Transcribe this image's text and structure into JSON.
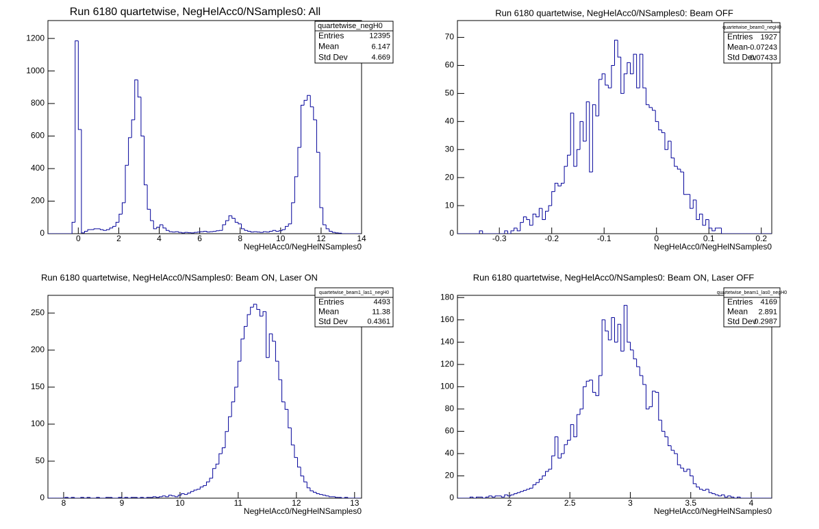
{
  "chart_data": [
    {
      "type": "histogram",
      "title": "Run 6180 quartetwise, NegHelAcc0/NSamples0: All",
      "xlabel": "NegHelAcc0/NegHelNSamples0",
      "color": "#000099",
      "xlim": [
        -1.5,
        14
      ],
      "ylim": [
        0,
        1310
      ],
      "xticks": [
        0,
        2,
        4,
        6,
        8,
        10,
        12,
        14
      ],
      "yticks": [
        0,
        200,
        400,
        600,
        800,
        1000,
        1200
      ],
      "bins": [
        -1.55,
        -1.395,
        -1.24,
        -1.085,
        -0.93,
        -0.775,
        -0.62,
        -0.465,
        -0.31,
        -0.155,
        0,
        0.155,
        0.31,
        0.465,
        0.62,
        0.775,
        0.93,
        1.085,
        1.24,
        1.395,
        1.55,
        1.705,
        1.86,
        2.015,
        2.17,
        2.325,
        2.48,
        2.635,
        2.79,
        2.945,
        3.1,
        3.255,
        3.41,
        3.565,
        3.72,
        3.875,
        4.03,
        4.185,
        4.34,
        4.495,
        4.65,
        4.805,
        4.96,
        5.115,
        5.27,
        5.425,
        5.58,
        5.735,
        5.89,
        6.045,
        6.2,
        6.355,
        6.51,
        6.665,
        6.82,
        6.975,
        7.13,
        7.285,
        7.44,
        7.595,
        7.75,
        7.905,
        8.06,
        8.215,
        8.37,
        8.525,
        8.68,
        8.835,
        8.99,
        9.145,
        9.3,
        9.455,
        9.61,
        9.765,
        9.92,
        10.075,
        10.23,
        10.385,
        10.54,
        10.695,
        10.85,
        11.005,
        11.16,
        11.315,
        11.47,
        11.625,
        11.78,
        11.935,
        12.09,
        12.245,
        12.4,
        12.555,
        12.71,
        12.865,
        13.02,
        13.175,
        13.33,
        13.485,
        13.64,
        13.795,
        13.95
      ],
      "counts": [
        0,
        0,
        0,
        0,
        0,
        0,
        0,
        0,
        70,
        1185,
        640,
        5,
        15,
        25,
        25,
        30,
        30,
        25,
        20,
        25,
        35,
        45,
        70,
        120,
        190,
        420,
        590,
        700,
        945,
        840,
        600,
        300,
        150,
        80,
        30,
        40,
        55,
        35,
        20,
        12,
        10,
        12,
        8,
        5,
        8,
        6,
        5,
        8,
        10,
        12,
        15,
        10,
        12,
        14,
        18,
        20,
        55,
        80,
        110,
        95,
        70,
        60,
        30,
        20,
        15,
        10,
        12,
        10,
        8,
        12,
        10,
        15,
        20,
        15,
        18,
        25,
        45,
        60,
        190,
        350,
        530,
        790,
        820,
        850,
        780,
        700,
        500,
        160,
        55,
        30,
        15,
        8,
        5,
        3,
        0,
        0,
        0,
        0,
        0,
        0
      ],
      "stats": {
        "name": "quartetwise_negH0",
        "rows": [
          {
            "label": "Entries",
            "value": 12395
          },
          {
            "label": "Mean",
            "value": 6.147
          },
          {
            "label": "Std Dev",
            "value": 4.669
          }
        ]
      }
    },
    {
      "type": "histogram",
      "title": "Run 6180 quartetwise, NegHelAcc0/NSamples0: Beam OFF",
      "xlabel": "NegHelAcc0/NegHelNSamples0",
      "color": "#000099",
      "xlim": [
        -0.38,
        0.22
      ],
      "ylim": [
        0,
        76
      ],
      "xticks": [
        -0.3,
        -0.2,
        -0.1,
        0,
        0.1,
        0.2
      ],
      "yticks": [
        0,
        10,
        20,
        30,
        40,
        50,
        60,
        70
      ],
      "bins": [
        -0.38,
        -0.374,
        -0.368,
        -0.362,
        -0.356,
        -0.35,
        -0.344,
        -0.338,
        -0.332,
        -0.326,
        -0.32,
        -0.314,
        -0.308,
        -0.302,
        -0.296,
        -0.29,
        -0.284,
        -0.278,
        -0.272,
        -0.266,
        -0.26,
        -0.254,
        -0.248,
        -0.242,
        -0.236,
        -0.23,
        -0.224,
        -0.218,
        -0.212,
        -0.206,
        -0.2,
        -0.194,
        -0.188,
        -0.182,
        -0.176,
        -0.17,
        -0.164,
        -0.158,
        -0.152,
        -0.146,
        -0.14,
        -0.134,
        -0.128,
        -0.122,
        -0.116,
        -0.11,
        -0.104,
        -0.098,
        -0.092,
        -0.086,
        -0.08,
        -0.074,
        -0.068,
        -0.062,
        -0.056,
        -0.05,
        -0.044,
        -0.038,
        -0.032,
        -0.026,
        -0.02,
        -0.014,
        -0.008,
        -0.002,
        0.004,
        0.01,
        0.016,
        0.022,
        0.028,
        0.034,
        0.04,
        0.046,
        0.052,
        0.058,
        0.064,
        0.07,
        0.076,
        0.082,
        0.088,
        0.094,
        0.1,
        0.106,
        0.112,
        0.118,
        0.124,
        0.13,
        0.136,
        0.142,
        0.148,
        0.154,
        0.16,
        0.166,
        0.172,
        0.178,
        0.184,
        0.19,
        0.196,
        0.202,
        0.208,
        0.214,
        0.22
      ],
      "counts": [
        0,
        0,
        0,
        0,
        0,
        0,
        0,
        1,
        0,
        0,
        0,
        0,
        0,
        0,
        0,
        1,
        0,
        1,
        2,
        1,
        4,
        6,
        5,
        3,
        7,
        6,
        9,
        5,
        8,
        10,
        15,
        18,
        17,
        18,
        24,
        28,
        43,
        24,
        30,
        40,
        33,
        47,
        22,
        46,
        42,
        55,
        57,
        53,
        52,
        60,
        69,
        63,
        50,
        57,
        61,
        57,
        64,
        52,
        64,
        52,
        46,
        45,
        44,
        40,
        37,
        36,
        30,
        33,
        27,
        24,
        23,
        22,
        14,
        14,
        9,
        12,
        5,
        7,
        3,
        5,
        2,
        1,
        2,
        2,
        0,
        0,
        0,
        0,
        0,
        0,
        0,
        0,
        0,
        0,
        0,
        0,
        0,
        0,
        0,
        0
      ],
      "stats": {
        "name": "quartetwise_beam0_negH0",
        "rows": [
          {
            "label": "Entries",
            "value": 1927
          },
          {
            "label": "Mean",
            "value": -0.07243
          },
          {
            "label": "Std Dev",
            "value": 0.07433
          }
        ]
      }
    },
    {
      "type": "histogram",
      "title": "Run 6180 quartetwise, NegHelAcc0/NSamples0: Beam ON, Laser ON",
      "xlabel": "NegHelAcc0/NegHelNSamples0",
      "color": "#000099",
      "xlim": [
        7.73,
        13.12
      ],
      "ylim": [
        0,
        274
      ],
      "xticks": [
        8,
        9,
        10,
        11,
        12,
        13
      ],
      "yticks": [
        0,
        50,
        100,
        150,
        200,
        250
      ],
      "bins": [
        7.7,
        7.754,
        7.808,
        7.862,
        7.916,
        7.97,
        8.024,
        8.078,
        8.132,
        8.186,
        8.24,
        8.294,
        8.348,
        8.402,
        8.456,
        8.51,
        8.564,
        8.618,
        8.672,
        8.726,
        8.78,
        8.834,
        8.888,
        8.942,
        8.996,
        9.05,
        9.104,
        9.158,
        9.212,
        9.266,
        9.32,
        9.374,
        9.428,
        9.482,
        9.536,
        9.59,
        9.644,
        9.698,
        9.752,
        9.806,
        9.86,
        9.914,
        9.968,
        10.022,
        10.076,
        10.13,
        10.184,
        10.238,
        10.292,
        10.346,
        10.4,
        10.454,
        10.508,
        10.562,
        10.616,
        10.67,
        10.724,
        10.778,
        10.832,
        10.886,
        10.94,
        10.994,
        11.048,
        11.102,
        11.156,
        11.21,
        11.264,
        11.318,
        11.372,
        11.426,
        11.48,
        11.534,
        11.588,
        11.642,
        11.696,
        11.75,
        11.804,
        11.858,
        11.912,
        11.966,
        12.02,
        12.074,
        12.128,
        12.182,
        12.236,
        12.29,
        12.344,
        12.398,
        12.452,
        12.506,
        12.56,
        12.614,
        12.668,
        12.722,
        12.776,
        12.83,
        12.884,
        12.938,
        12.992,
        13.046,
        13.1
      ],
      "counts": [
        0,
        0,
        0,
        0,
        0,
        0,
        1,
        0,
        1,
        0,
        0,
        1,
        0,
        1,
        0,
        0,
        1,
        0,
        0,
        1,
        1,
        0,
        0,
        1,
        0,
        1,
        0,
        1,
        1,
        0,
        1,
        0,
        1,
        1,
        2,
        1,
        2,
        3,
        2,
        4,
        3,
        2,
        4,
        6,
        5,
        7,
        9,
        11,
        12,
        15,
        17,
        22,
        27,
        40,
        46,
        60,
        68,
        90,
        110,
        130,
        150,
        185,
        215,
        232,
        248,
        258,
        262,
        255,
        246,
        252,
        190,
        222,
        212,
        185,
        160,
        130,
        120,
        95,
        72,
        55,
        42,
        30,
        22,
        14,
        10,
        8,
        6,
        5,
        4,
        3,
        2,
        2,
        1,
        1,
        0,
        1,
        0,
        0,
        0,
        0
      ],
      "stats": {
        "name": "quartetwise_beam1_las1_negH0",
        "rows": [
          {
            "label": "Entries",
            "value": 4493
          },
          {
            "label": "Mean",
            "value": 11.38
          },
          {
            "label": "Std Dev",
            "value": 0.4361
          }
        ]
      }
    },
    {
      "type": "histogram",
      "title": "Run 6180 quartetwise, NegHelAcc0/NSamples0: Beam ON, Laser OFF",
      "xlabel": "NegHelAcc0/NegHelNSamples0",
      "color": "#000099",
      "xlim": [
        1.57,
        4.17
      ],
      "ylim": [
        0,
        182
      ],
      "xticks": [
        2,
        2.5,
        3,
        3.5,
        4
      ],
      "yticks": [
        0,
        20,
        40,
        60,
        80,
        100,
        120,
        140,
        160,
        180
      ],
      "bins": [
        1.57,
        1.596,
        1.622,
        1.648,
        1.674,
        1.7,
        1.726,
        1.752,
        1.778,
        1.804,
        1.83,
        1.856,
        1.882,
        1.908,
        1.934,
        1.96,
        1.986,
        2.012,
        2.038,
        2.064,
        2.09,
        2.116,
        2.142,
        2.168,
        2.194,
        2.22,
        2.246,
        2.272,
        2.298,
        2.324,
        2.35,
        2.376,
        2.402,
        2.428,
        2.454,
        2.48,
        2.506,
        2.532,
        2.558,
        2.584,
        2.61,
        2.636,
        2.662,
        2.688,
        2.714,
        2.74,
        2.766,
        2.792,
        2.818,
        2.844,
        2.87,
        2.896,
        2.922,
        2.948,
        2.974,
        3.0,
        3.026,
        3.052,
        3.078,
        3.104,
        3.13,
        3.156,
        3.182,
        3.208,
        3.234,
        3.26,
        3.286,
        3.312,
        3.338,
        3.364,
        3.39,
        3.416,
        3.442,
        3.468,
        3.494,
        3.52,
        3.546,
        3.572,
        3.598,
        3.624,
        3.65,
        3.676,
        3.702,
        3.728,
        3.754,
        3.78,
        3.806,
        3.832,
        3.858,
        3.884,
        3.91,
        3.936,
        3.962,
        3.988,
        4.014,
        4.04,
        4.066,
        4.092,
        4.118,
        4.144,
        4.17
      ],
      "counts": [
        0,
        0,
        0,
        0,
        1,
        0,
        1,
        1,
        0,
        1,
        2,
        1,
        2,
        2,
        1,
        3,
        2,
        3,
        4,
        5,
        6,
        7,
        8,
        9,
        12,
        14,
        17,
        20,
        24,
        26,
        38,
        55,
        36,
        40,
        48,
        52,
        66,
        55,
        75,
        80,
        100,
        105,
        106,
        95,
        92,
        110,
        160,
        150,
        142,
        162,
        140,
        156,
        132,
        173,
        140,
        133,
        125,
        118,
        110,
        102,
        80,
        82,
        96,
        95,
        70,
        60,
        55,
        47,
        43,
        40,
        30,
        27,
        24,
        26,
        20,
        13,
        10,
        8,
        7,
        8,
        5,
        4,
        3,
        2,
        3,
        1,
        2,
        1,
        0,
        1,
        0,
        0,
        0,
        0,
        0,
        0,
        0,
        0,
        0,
        0
      ],
      "stats": {
        "name": "quartetwise_beam1_las0_negH0",
        "rows": [
          {
            "label": "Entries",
            "value": 4169
          },
          {
            "label": "Mean",
            "value": 2.891
          },
          {
            "label": "Std Dev",
            "value": 0.2987
          }
        ]
      }
    }
  ]
}
